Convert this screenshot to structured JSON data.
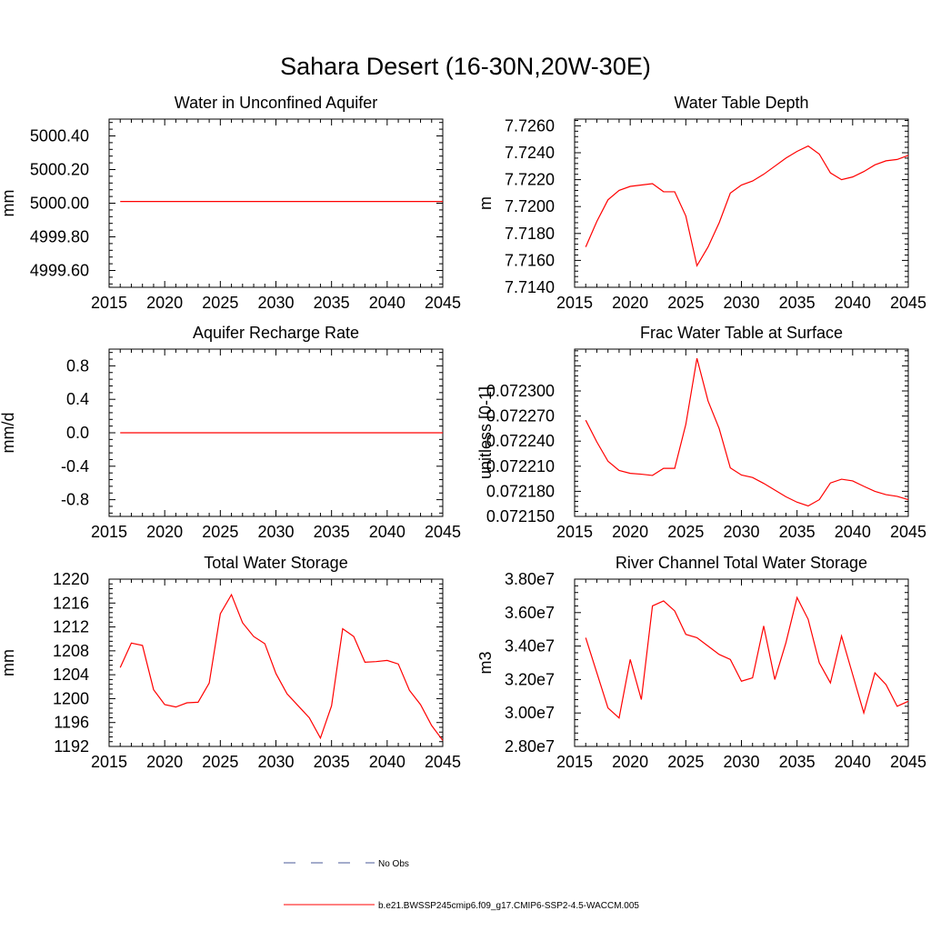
{
  "figure_title": "Sahara Desert (16-30N,20W-30E)",
  "chart_data": [
    {
      "type": "line",
      "title": "Water in Unconfined Aquifer",
      "xlabel": "",
      "ylabel": "mm",
      "xlim": [
        2015,
        2045
      ],
      "ylim": [
        4999.5,
        5000.5
      ],
      "xticks": [
        2015,
        2020,
        2025,
        2030,
        2035,
        2040,
        2045
      ],
      "xtick_labels": [
        "2015",
        "2020",
        "2025",
        "2030",
        "2035",
        "2040",
        "2045"
      ],
      "yticks": [
        4999.6,
        4999.8,
        5000.0,
        5000.2,
        5000.4
      ],
      "ytick_labels": [
        "4999.60",
        "4999.80",
        "5000.00",
        "5000.20",
        "5000.40"
      ],
      "x": [
        2016,
        2017,
        2018,
        2019,
        2020,
        2021,
        2022,
        2023,
        2024,
        2025,
        2026,
        2027,
        2028,
        2029,
        2030,
        2031,
        2032,
        2033,
        2034,
        2035,
        2036,
        2037,
        2038,
        2039,
        2040,
        2041,
        2042,
        2043,
        2044,
        2045
      ],
      "series": [
        {
          "name": "b.e21.BWSSP245cmip6.f09_g17.CMIP6-SSP2-4.5-WACCM.005",
          "color": "#ff0000",
          "values": [
            5000.01,
            5000.01,
            5000.01,
            5000.01,
            5000.01,
            5000.01,
            5000.01,
            5000.01,
            5000.01,
            5000.01,
            5000.01,
            5000.01,
            5000.01,
            5000.01,
            5000.01,
            5000.01,
            5000.01,
            5000.01,
            5000.01,
            5000.01,
            5000.01,
            5000.01,
            5000.01,
            5000.01,
            5000.01,
            5000.01,
            5000.01,
            5000.01,
            5000.01,
            5000.01
          ]
        }
      ]
    },
    {
      "type": "line",
      "title": "Water Table Depth",
      "xlabel": "",
      "ylabel": "m",
      "xlim": [
        2015,
        2045
      ],
      "ylim": [
        7.714,
        7.7265
      ],
      "xticks": [
        2015,
        2020,
        2025,
        2030,
        2035,
        2040,
        2045
      ],
      "xtick_labels": [
        "2015",
        "2020",
        "2025",
        "2030",
        "2035",
        "2040",
        "2045"
      ],
      "yticks": [
        7.714,
        7.716,
        7.718,
        7.72,
        7.722,
        7.724,
        7.726
      ],
      "ytick_labels": [
        "7.7140",
        "7.7160",
        "7.7180",
        "7.7200",
        "7.7220",
        "7.7240",
        "7.7260"
      ],
      "x": [
        2016,
        2017,
        2018,
        2019,
        2020,
        2021,
        2022,
        2023,
        2024,
        2025,
        2026,
        2027,
        2028,
        2029,
        2030,
        2031,
        2032,
        2033,
        2034,
        2035,
        2036,
        2037,
        2038,
        2039,
        2040,
        2041,
        2042,
        2043,
        2044,
        2045
      ],
      "series": [
        {
          "name": "b.e21.BWSSP245cmip6.f09_g17.CMIP6-SSP2-4.5-WACCM.005",
          "color": "#ff0000",
          "values": [
            7.717,
            7.7189,
            7.7205,
            7.7212,
            7.7215,
            7.7216,
            7.7217,
            7.7211,
            7.7211,
            7.7193,
            7.7156,
            7.717,
            7.7188,
            7.721,
            7.7216,
            7.7219,
            7.7224,
            7.723,
            7.7236,
            7.7241,
            7.7245,
            7.7239,
            7.7225,
            7.722,
            7.7222,
            7.7226,
            7.7231,
            7.7234,
            7.7235,
            7.7238
          ]
        }
      ]
    },
    {
      "type": "line",
      "title": "Aquifer Recharge Rate",
      "xlabel": "",
      "ylabel": "mm/d",
      "xlim": [
        2015,
        2045
      ],
      "ylim": [
        -1.0,
        1.0
      ],
      "xticks": [
        2015,
        2020,
        2025,
        2030,
        2035,
        2040,
        2045
      ],
      "xtick_labels": [
        "2015",
        "2020",
        "2025",
        "2030",
        "2035",
        "2040",
        "2045"
      ],
      "yticks": [
        -0.8,
        -0.4,
        0.0,
        0.4,
        0.8
      ],
      "ytick_labels": [
        "-0.8",
        "-0.4",
        "0.0",
        "0.4",
        "0.8"
      ],
      "x": [
        2016,
        2017,
        2018,
        2019,
        2020,
        2021,
        2022,
        2023,
        2024,
        2025,
        2026,
        2027,
        2028,
        2029,
        2030,
        2031,
        2032,
        2033,
        2034,
        2035,
        2036,
        2037,
        2038,
        2039,
        2040,
        2041,
        2042,
        2043,
        2044,
        2045
      ],
      "series": [
        {
          "name": "b.e21.BWSSP245cmip6.f09_g17.CMIP6-SSP2-4.5-WACCM.005",
          "color": "#ff0000",
          "values": [
            0,
            0,
            0,
            0,
            0,
            0,
            0,
            0,
            0,
            0,
            0,
            0,
            0,
            0,
            0,
            0,
            0,
            0,
            0,
            0,
            0,
            0,
            0,
            0,
            0,
            0,
            0,
            0,
            0,
            0
          ]
        }
      ]
    },
    {
      "type": "line",
      "title": "Frac Water Table at Surface",
      "xlabel": "",
      "ylabel": "unitless [0-1]",
      "xlim": [
        2015,
        2045
      ],
      "ylim": [
        0.07215,
        0.07235
      ],
      "xticks": [
        2015,
        2020,
        2025,
        2030,
        2035,
        2040,
        2045
      ],
      "xtick_labels": [
        "2015",
        "2020",
        "2025",
        "2030",
        "2035",
        "2040",
        "2045"
      ],
      "yticks": [
        0.07215,
        0.07218,
        0.07221,
        0.07224,
        0.07227,
        0.0723
      ],
      "ytick_labels": [
        "0.072150",
        "0.072180",
        "0.072210",
        "0.072240",
        "0.072270",
        "0.072300"
      ],
      "x": [
        2016,
        2017,
        2018,
        2019,
        2020,
        2021,
        2022,
        2023,
        2024,
        2025,
        2026,
        2027,
        2028,
        2029,
        2030,
        2031,
        2032,
        2033,
        2034,
        2035,
        2036,
        2037,
        2038,
        2039,
        2040,
        2041,
        2042,
        2043,
        2044,
        2045
      ],
      "series": [
        {
          "name": "b.e21.BWSSP245cmip6.f09_g17.CMIP6-SSP2-4.5-WACCM.005",
          "color": "#ff0000",
          "values": [
            0.072265,
            0.072239,
            0.072216,
            0.072205,
            0.0722015,
            0.0722005,
            0.072199,
            0.0722075,
            0.0722075,
            0.07226,
            0.072339,
            0.072288,
            0.072255,
            0.072208,
            0.0721995,
            0.0721965,
            0.0721895,
            0.0721815,
            0.0721735,
            0.072167,
            0.0721625,
            0.07217,
            0.07219,
            0.0721945,
            0.0721925,
            0.072186,
            0.07218,
            0.072176,
            0.072174,
            0.07217
          ]
        }
      ]
    },
    {
      "type": "line",
      "title": "Total Water Storage",
      "xlabel": "",
      "ylabel": "mm",
      "xlim": [
        2015,
        2045
      ],
      "ylim": [
        1192,
        1220
      ],
      "xticks": [
        2015,
        2020,
        2025,
        2030,
        2035,
        2040,
        2045
      ],
      "xtick_labels": [
        "2015",
        "2020",
        "2025",
        "2030",
        "2035",
        "2040",
        "2045"
      ],
      "yticks": [
        1192,
        1196,
        1200,
        1204,
        1208,
        1212,
        1216,
        1220
      ],
      "ytick_labels": [
        "1192",
        "1196",
        "1200",
        "1204",
        "1208",
        "1212",
        "1216",
        "1220"
      ],
      "x": [
        2016,
        2017,
        2018,
        2019,
        2020,
        2021,
        2022,
        2023,
        2024,
        2025,
        2026,
        2027,
        2028,
        2029,
        2030,
        2031,
        2032,
        2033,
        2034,
        2035,
        2036,
        2037,
        2038,
        2039,
        2040,
        2041,
        2042,
        2043,
        2044,
        2045
      ],
      "series": [
        {
          "name": "b.e21.BWSSP245cmip6.f09_g17.CMIP6-SSP2-4.5-WACCM.005",
          "color": "#ff0000",
          "values": [
            1205.2,
            1209.3,
            1208.9,
            1201.5,
            1199.0,
            1198.6,
            1199.3,
            1199.4,
            1202.6,
            1214.2,
            1217.4,
            1212.7,
            1210.4,
            1209.2,
            1204.2,
            1200.8,
            1198.8,
            1196.8,
            1193.4,
            1198.8,
            1211.7,
            1210.4,
            1206.1,
            1206.2,
            1206.4,
            1205.8,
            1201.4,
            1199.0,
            1195.5,
            1193.0
          ]
        }
      ]
    },
    {
      "type": "line",
      "title": "River Channel Total Water Storage",
      "xlabel": "",
      "ylabel": "m3",
      "xlim": [
        2015,
        2045
      ],
      "ylim": [
        28000000,
        38000000
      ],
      "xticks": [
        2015,
        2020,
        2025,
        2030,
        2035,
        2040,
        2045
      ],
      "xtick_labels": [
        "2015",
        "2020",
        "2025",
        "2030",
        "2035",
        "2040",
        "2045"
      ],
      "yticks": [
        28000000,
        30000000,
        32000000,
        34000000,
        36000000,
        38000000
      ],
      "ytick_labels": [
        "2.80e7",
        "3.00e7",
        "3.20e7",
        "3.40e7",
        "3.60e7",
        "3.80e7"
      ],
      "x": [
        2016,
        2017,
        2018,
        2019,
        2020,
        2021,
        2022,
        2023,
        2024,
        2025,
        2026,
        2027,
        2028,
        2029,
        2030,
        2031,
        2032,
        2033,
        2034,
        2035,
        2036,
        2037,
        2038,
        2039,
        2040,
        2041,
        2042,
        2043,
        2044,
        2045
      ],
      "series": [
        {
          "name": "b.e21.BWSSP245cmip6.f09_g17.CMIP6-SSP2-4.5-WACCM.005",
          "color": "#ff0000",
          "values": [
            34500000,
            32400000,
            30300000,
            29700000,
            33200000,
            30800000,
            36400000,
            36700000,
            36100000,
            34700000,
            34500000,
            34000000,
            33500000,
            33200000,
            31900000,
            32100000,
            35200000,
            32000000,
            34200000,
            36900000,
            35600000,
            33000000,
            31800000,
            34600000,
            32300000,
            30000000,
            32400000,
            31700000,
            30400000,
            30700000
          ]
        }
      ]
    }
  ],
  "legend": {
    "placement": "bottom-center",
    "entries": [
      {
        "label": "No Obs",
        "color": "#4a5a9a",
        "style": "dashed"
      },
      {
        "label": "b.e21.BWSSP245cmip6.f09_g17.CMIP6-SSP2-4.5-WACCM.005",
        "color": "#ff0000",
        "style": "solid"
      }
    ]
  }
}
